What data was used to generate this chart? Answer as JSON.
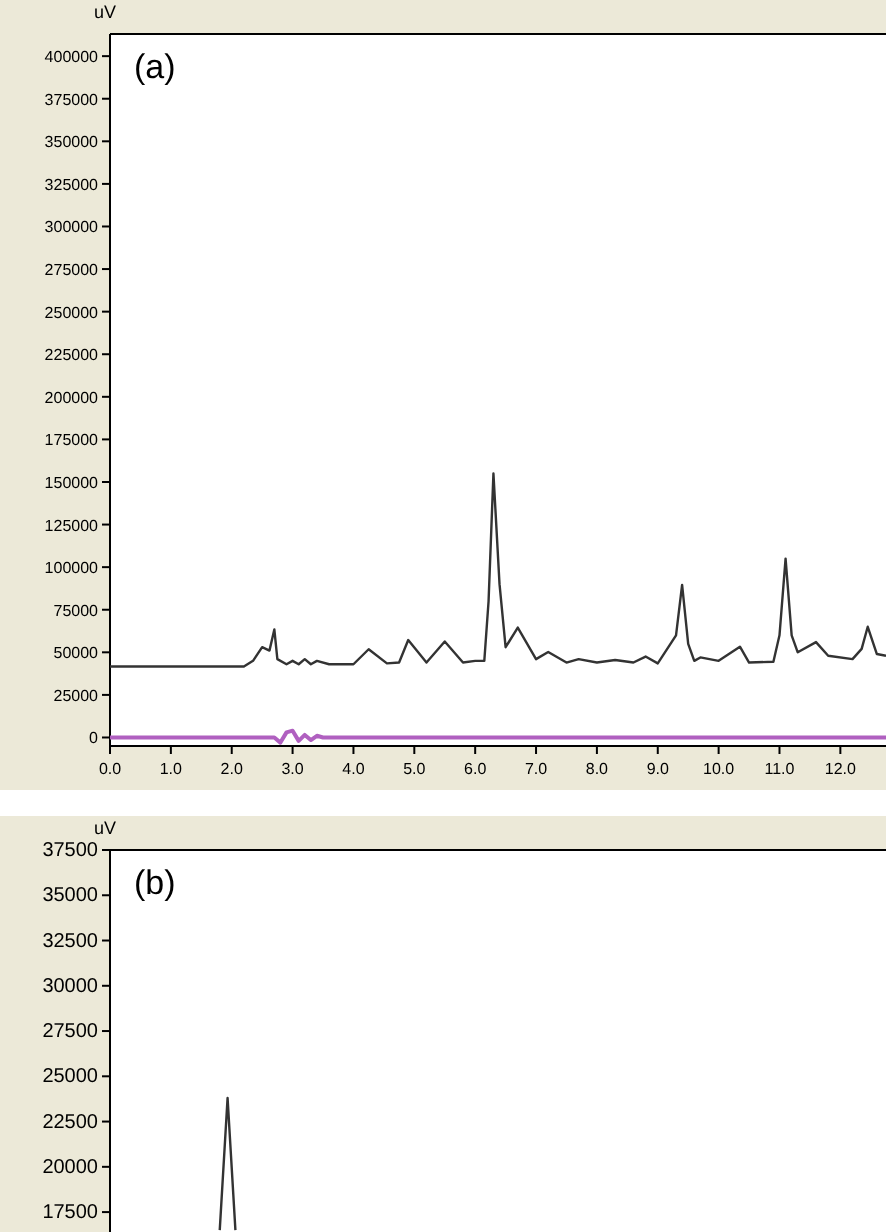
{
  "chart_data": [
    {
      "type": "line",
      "title": "(a)",
      "ylabel": "uV",
      "xlim": [
        0,
        12.75
      ],
      "ylim": [
        -5000,
        413000
      ],
      "xticks": [
        {
          "value": 0,
          "label": "0.0"
        },
        {
          "value": 1,
          "label": "1.0"
        },
        {
          "value": 2,
          "label": "2.0"
        },
        {
          "value": 3,
          "label": "3.0"
        },
        {
          "value": 4,
          "label": "4.0"
        },
        {
          "value": 5,
          "label": "5.0"
        },
        {
          "value": 6,
          "label": "6.0"
        },
        {
          "value": 7,
          "label": "7.0"
        },
        {
          "value": 8,
          "label": "8.0"
        },
        {
          "value": 9,
          "label": "9.0"
        },
        {
          "value": 10,
          "label": "10.0"
        },
        {
          "value": 11,
          "label": "11.0"
        },
        {
          "value": 12,
          "label": "12.0"
        }
      ],
      "yticks": [
        0,
        25000,
        50000,
        75000,
        100000,
        125000,
        150000,
        175000,
        200000,
        225000,
        250000,
        275000,
        300000,
        325000,
        350000,
        375000,
        400000
      ],
      "series": [
        {
          "color": "#333333",
          "x": [
            0,
            2.2,
            2.35,
            2.5,
            2.62,
            2.7,
            2.75,
            2.9,
            3.0,
            3.1,
            3.2,
            3.3,
            3.4,
            3.6,
            4.0,
            4.25,
            4.55,
            4.75,
            4.9,
            5.2,
            5.5,
            5.8,
            6.0,
            6.15,
            6.22,
            6.3,
            6.4,
            6.5,
            6.7,
            7.0,
            7.2,
            7.5,
            7.7,
            8.0,
            8.3,
            8.6,
            8.8,
            9.0,
            9.3,
            9.4,
            9.5,
            9.6,
            9.7,
            10.0,
            10.35,
            10.5,
            10.9,
            11.0,
            11.1,
            11.2,
            11.3,
            11.6,
            11.8,
            12.2,
            12.35,
            12.45,
            12.6,
            12.75
          ],
          "values": [
            41700,
            41700,
            45000,
            53000,
            51000,
            63400,
            46000,
            43000,
            45000,
            43000,
            46000,
            43000,
            45000,
            43000,
            43000,
            51800,
            43500,
            44000,
            57200,
            44000,
            56400,
            44000,
            45000,
            45000,
            80000,
            155000,
            90000,
            53000,
            64500,
            46000,
            50200,
            44000,
            46000,
            44000,
            45500,
            44000,
            47500,
            43500,
            60000,
            89600,
            55000,
            45000,
            47000,
            45000,
            53300,
            44000,
            44500,
            60000,
            105000,
            60000,
            50000,
            56000,
            48000,
            46000,
            52000,
            65000,
            49000,
            48000
          ]
        },
        {
          "color": "#b060c0",
          "x": [
            0,
            2.7,
            2.8,
            2.9,
            3.0,
            3.1,
            3.2,
            3.3,
            3.4,
            3.5,
            12.75
          ],
          "values": [
            0,
            0,
            -3000,
            3000,
            4000,
            -2000,
            1500,
            -1500,
            1000,
            0,
            0
          ]
        }
      ]
    },
    {
      "type": "line",
      "title": "(b)",
      "ylabel": "uV",
      "tick_labels": "y",
      "ylim": [
        16400,
        37500
      ],
      "yticks": [
        17500,
        20000,
        22500,
        25000,
        27500,
        30000,
        32500,
        35000,
        37500
      ],
      "categories": [
        null,
        null,
        null,
        null,
        null,
        null,
        null,
        null,
        null,
        null,
        null,
        null,
        null,
        null,
        null,
        null,
        null,
        null,
        null,
        null,
        null,
        null,
        null,
        null,
        null,
        null,
        null,
        null,
        null,
        null,
        null,
        null,
        null,
        null,
        null,
        null,
        null,
        null,
        null,
        null,
        null,
        null,
        null,
        null,
        null,
        null,
        null,
        null,
        null,
        null,
        null,
        null,
        null,
        null,
        null,
        null,
        null,
        null,
        null,
        null,
        null,
        null,
        null,
        null,
        null,
        null,
        null,
        null,
        null,
        null,
        null,
        null,
        null,
        null,
        null,
        null,
        null,
        null,
        null,
        null,
        null,
        null,
        null,
        null,
        null,
        null,
        null,
        null,
        null,
        null,
        null,
        null,
        null,
        null,
        null,
        null,
        null,
        null,
        null,
        null
      ],
      "series": [
        {
          "color": "#333333",
          "values": [
            null,
            null,
            null,
            null,
            null,
            null,
            null,
            null,
            null,
            null,
            null,
            null,
            null,
            null,
            16500,
            23800,
            16500,
            null,
            null,
            null,
            null,
            null,
            null,
            null,
            null,
            null,
            null,
            null,
            null,
            null,
            null,
            null,
            null,
            null,
            null,
            null,
            null,
            null,
            null,
            null,
            null,
            null,
            null,
            null,
            null,
            null,
            null,
            null,
            null,
            null,
            null,
            null,
            null,
            null,
            null,
            null,
            null,
            null,
            null,
            null,
            null,
            null,
            null,
            null,
            null,
            null,
            null,
            null,
            null,
            null,
            null,
            null,
            null,
            null,
            null,
            null,
            null,
            null,
            null,
            null,
            null,
            null,
            null,
            null,
            null,
            null,
            null,
            null,
            null,
            null,
            null,
            null,
            null,
            null,
            null,
            null,
            null,
            null,
            null,
            null
          ]
        }
      ]
    }
  ]
}
